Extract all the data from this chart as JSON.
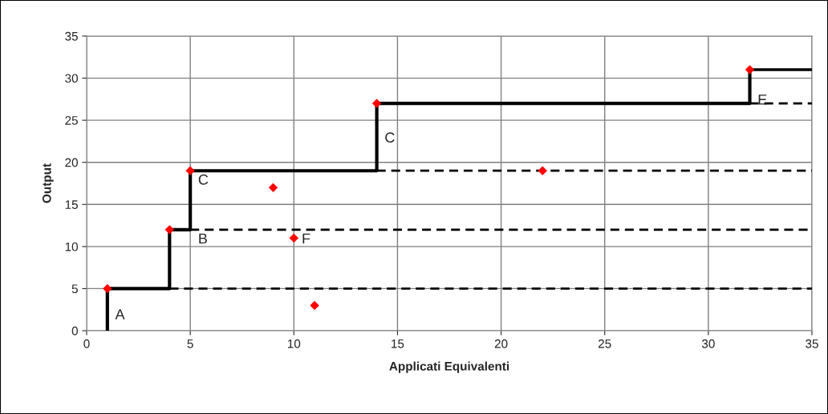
{
  "chart_data": {
    "type": "line",
    "xlabel": "Applicati Equivalenti",
    "ylabel": "Output",
    "xlim": [
      0,
      35
    ],
    "ylim": [
      0,
      35
    ],
    "xticks": [
      0,
      5,
      10,
      15,
      20,
      25,
      30,
      35
    ],
    "yticks": [
      0,
      5,
      10,
      15,
      20,
      25,
      30,
      35
    ],
    "grid": true,
    "series": [
      {
        "color": "#000000",
        "line_style": "solid",
        "x": [
          1,
          1,
          4,
          4,
          5,
          5,
          14,
          14,
          32,
          32
        ],
        "values": [
          0,
          5,
          5,
          12,
          12,
          19,
          19,
          27,
          27,
          31
        ]
      },
      {
        "color": "#000000",
        "line_style": "solid",
        "x": [
          32,
          35
        ],
        "values": [
          31,
          31
        ]
      },
      {
        "color": "#000000",
        "line_style": "dashed",
        "x": [
          4,
          35
        ],
        "values": [
          5,
          5
        ]
      },
      {
        "color": "#000000",
        "line_style": "dashed",
        "x": [
          5,
          35
        ],
        "values": [
          12,
          12
        ]
      },
      {
        "color": "#000000",
        "line_style": "dashed",
        "x": [
          14,
          35
        ],
        "values": [
          19,
          19
        ]
      },
      {
        "color": "#000000",
        "line_style": "dashed",
        "x": [
          32,
          35
        ],
        "values": [
          27,
          27
        ]
      },
      {
        "type": "scatter",
        "color": "#ff0000",
        "marker": "diamond",
        "x": [
          1,
          4,
          5,
          9,
          10,
          11,
          14,
          22,
          32
        ],
        "values": [
          5,
          12,
          19,
          17,
          11,
          3,
          27,
          19,
          31
        ]
      }
    ],
    "annotations": [
      {
        "text": "A",
        "x": 1,
        "y": 3
      },
      {
        "text": "B",
        "x": 5,
        "y": 12
      },
      {
        "text": "C",
        "x": 5,
        "y": 19
      },
      {
        "text": "C",
        "x": 14,
        "y": 24
      },
      {
        "text": "E",
        "x": 32,
        "y": 28.5
      },
      {
        "text": "F",
        "x": 10,
        "y": 12
      }
    ]
  }
}
